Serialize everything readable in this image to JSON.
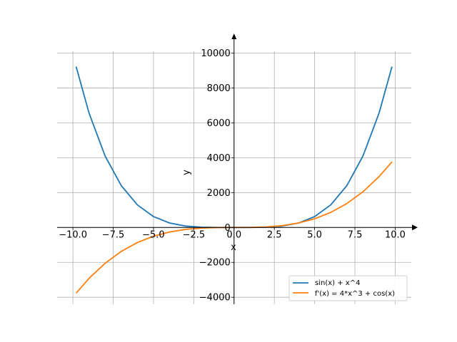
{
  "chart_data": {
    "type": "line",
    "title": "",
    "xlabel": "x",
    "ylabel": "y",
    "xlim": [
      -10.98,
      11.0
    ],
    "ylim": [
      -4400,
      11000
    ],
    "grid": true,
    "legend_position": "lower-right",
    "x_ticks": [
      -10.0,
      -7.5,
      -5.0,
      -2.5,
      0.0,
      2.5,
      5.0,
      7.5,
      10.0
    ],
    "x_tick_labels": [
      "−10.0",
      "−7.5",
      "−5.0",
      "−2.5",
      "0.0",
      "2.5",
      "5.0",
      "7.5",
      "10.0"
    ],
    "y_ticks": [
      -4000,
      -2000,
      0,
      2000,
      4000,
      6000,
      8000,
      10000
    ],
    "y_tick_labels": [
      "−4000",
      "−2000",
      "0",
      "2000",
      "4000",
      "6000",
      "8000",
      "10000"
    ],
    "x": [
      -9.8,
      -9.0,
      -8.0,
      -7.0,
      -6.0,
      -5.0,
      -4.0,
      -3.0,
      -2.0,
      -1.0,
      0.0,
      1.0,
      2.0,
      3.0,
      4.0,
      5.0,
      6.0,
      7.0,
      8.0,
      9.0,
      9.8
    ],
    "series": [
      {
        "name": "sin(x) + x^4",
        "color": "#1f77b4",
        "values": [
          9223.5,
          6560.6,
          4095.0,
          2401.7,
          1296.3,
          626.0,
          256.8,
          80.9,
          15.1,
          0.2,
          0.0,
          1.8,
          16.9,
          81.1,
          255.2,
          624.0,
          1295.7,
          2401.7,
          4097.0,
          6561.4,
          9223.1
        ]
      },
      {
        "name": "f'(x) = 4*x^3 + cos(x)",
        "color": "#ff7f0e",
        "values": [
          -3765.7,
          -2916.9,
          -2048.1,
          -1371.2,
          -863.0,
          -499.7,
          -256.7,
          -109.0,
          -32.4,
          -3.5,
          1.0,
          4.5,
          31.6,
          107.0,
          255.3,
          500.3,
          865.0,
          1372.8,
          2047.9,
          2915.1,
          3763.8
        ]
      }
    ]
  }
}
